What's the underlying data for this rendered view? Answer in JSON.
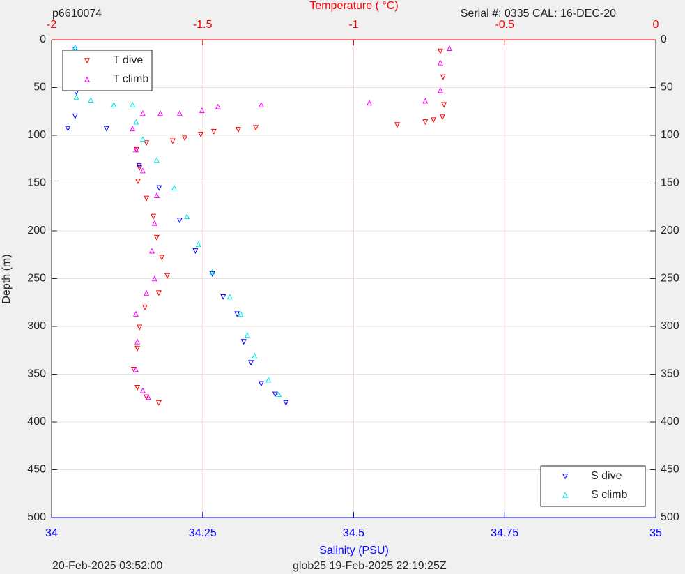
{
  "chart_data": {
    "type": "scatter",
    "title_left": "p6610074",
    "title_right": "Serial #: 0335  CAL: 16-DEC-20",
    "x2_label": "Temperature (    °C)",
    "x_label": "Salinity (PSU)",
    "y_label": "Depth (m)",
    "footer_left": "20-Feb-2025 03:52:00",
    "footer_right": "glob25 19-Feb-2025 22:19:25Z",
    "xlim": [
      34,
      35
    ],
    "xticks": [
      34,
      34.25,
      34.5,
      34.75,
      35
    ],
    "x2lim": [
      -2,
      0
    ],
    "x2ticks": [
      -2,
      -1.5,
      -1,
      -0.5,
      0
    ],
    "ylim": [
      0,
      500
    ],
    "yticks": [
      0,
      50,
      100,
      150,
      200,
      250,
      300,
      350,
      400,
      450,
      500
    ],
    "y_reversed": true,
    "grid": true,
    "x_axis_color": "#0000ff",
    "x2_axis_color": "#ff0000",
    "temperature_legend": "upper left",
    "salinity_legend": "lower right",
    "series": [
      {
        "name": "T dive",
        "color": "#ff0000",
        "marker": "down",
        "axis": "x2",
        "x": [
          -0.713,
          -0.704,
          -0.701,
          -0.706,
          -0.736,
          -0.763,
          -0.856,
          -1.324,
          -1.382,
          -1.463,
          -1.506,
          -1.559,
          -1.599,
          -1.686,
          -1.719,
          -1.709,
          -1.714,
          -1.686,
          -1.663,
          -1.652,
          -1.635,
          -1.617,
          -1.645,
          -1.691,
          -1.709,
          -1.716,
          -1.728,
          -1.716,
          -1.686,
          -1.645
        ],
        "y": [
          12,
          39,
          68,
          81,
          84,
          86,
          89,
          92,
          94,
          96,
          99,
          103,
          106,
          108,
          115,
          134,
          148,
          166,
          185,
          207,
          228,
          247,
          265,
          280,
          301,
          323,
          345,
          364,
          374,
          380
        ]
      },
      {
        "name": "T climb",
        "color": "#ff00ff",
        "marker": "up",
        "axis": "x2",
        "x": [
          -0.683,
          -0.713,
          -0.713,
          -0.763,
          -0.948,
          -1.306,
          -1.449,
          -1.502,
          -1.576,
          -1.64,
          -1.698,
          -1.732,
          -1.721,
          -1.698,
          -1.652,
          -1.659,
          -1.668,
          -1.659,
          -1.686,
          -1.721,
          -1.716,
          -1.721,
          -1.698,
          -1.68
        ],
        "y": [
          9,
          24,
          53,
          64,
          66,
          68,
          70,
          74,
          77,
          77,
          77,
          93,
          115,
          137,
          163,
          192,
          221,
          250,
          265,
          287,
          316,
          345,
          367,
          374
        ]
      },
      {
        "name": "S dive",
        "color": "#0000ff",
        "marker": "down",
        "axis": "x",
        "x": [
          34.039,
          34.04,
          34.041,
          34.039,
          34.027,
          34.091,
          34.145,
          34.178,
          34.212,
          34.238,
          34.266,
          34.284,
          34.307,
          34.318,
          34.33,
          34.347,
          34.37,
          34.388
        ],
        "y": [
          10,
          30,
          55,
          80,
          93,
          93,
          132,
          155,
          189,
          221,
          245,
          269,
          287,
          316,
          338,
          360,
          371,
          380
        ]
      },
      {
        "name": "S climb",
        "color": "#00e5e5",
        "marker": "up",
        "axis": "x",
        "x": [
          34.039,
          34.039,
          34.04,
          34.041,
          34.065,
          34.103,
          34.134,
          34.14,
          34.151,
          34.174,
          34.203,
          34.224,
          34.243,
          34.266,
          34.295,
          34.313,
          34.324,
          34.336,
          34.359,
          34.376
        ],
        "y": [
          8,
          25,
          45,
          60,
          63,
          68,
          68,
          86,
          104,
          126,
          155,
          185,
          214,
          243,
          269,
          287,
          309,
          331,
          356,
          371
        ]
      }
    ]
  }
}
